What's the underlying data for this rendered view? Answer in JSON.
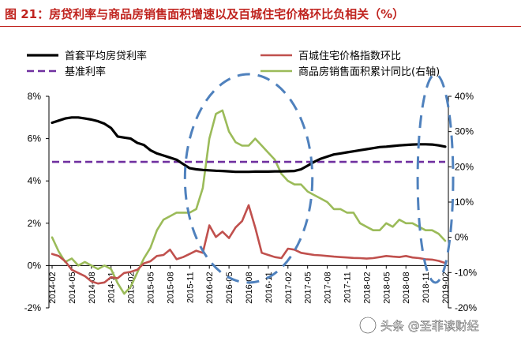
{
  "header": {
    "title": "图 21：房贷利率与商品房销售面积增速以及百城住宅价格环比负相关（%）"
  },
  "watermark": {
    "text": "头条 @圣菲读财经"
  },
  "colors": {
    "title": "#c0241f",
    "mortgage": "#000000",
    "price": "#c0504d",
    "base": "#7030a0",
    "sales": "#9bbb59",
    "ellipse": "#4f81bd"
  },
  "chart_data": {
    "type": "line",
    "title": "房贷利率与商品房销售面积增速以及百城住宅价格环比负相关（%）",
    "x": [
      "2014-02",
      "2014-03",
      "2014-04",
      "2014-05",
      "2014-06",
      "2014-07",
      "2014-08",
      "2014-09",
      "2014-10",
      "2014-11",
      "2014-12",
      "2015-01",
      "2015-02",
      "2015-03",
      "2015-04",
      "2015-05",
      "2015-06",
      "2015-07",
      "2015-08",
      "2015-09",
      "2015-10",
      "2015-11",
      "2015-12",
      "2016-01",
      "2016-02",
      "2016-03",
      "2016-04",
      "2016-05",
      "2016-06",
      "2016-07",
      "2016-08",
      "2016-09",
      "2016-10",
      "2016-11",
      "2016-12",
      "2017-01",
      "2017-02",
      "2017-03",
      "2017-04",
      "2017-05",
      "2017-06",
      "2017-07",
      "2017-08",
      "2017-09",
      "2017-10",
      "2017-11",
      "2017-12",
      "2018-01",
      "2018-02",
      "2018-03",
      "2018-04",
      "2018-05",
      "2018-06",
      "2018-07",
      "2018-08",
      "2018-09",
      "2018-10",
      "2018-11",
      "2018-12",
      "2019-01",
      "2019-02"
    ],
    "xticks": [
      "2014-02",
      "2014-05",
      "2014-08",
      "2014-11",
      "2015-02",
      "2015-05",
      "2015-08",
      "2015-11",
      "2016-02",
      "2016-05",
      "2016-08",
      "2016-11",
      "2017-02",
      "2017-05",
      "2017-08",
      "2017-11",
      "2018-02",
      "2018-05",
      "2018-08",
      "2018-11",
      "2019-02"
    ],
    "y_left": {
      "ylim": [
        -2,
        8
      ],
      "ticks": [
        "-2%",
        "0%",
        "2%",
        "4%",
        "6%",
        "8%"
      ],
      "tick_values": [
        -2,
        0,
        2,
        4,
        6,
        8
      ]
    },
    "y_right": {
      "ylim": [
        -20,
        40
      ],
      "ticks": [
        "-20%",
        "-10%",
        "0%",
        "10%",
        "20%",
        "30%",
        "40%"
      ],
      "tick_values": [
        -20,
        -10,
        0,
        10,
        20,
        30,
        40
      ]
    },
    "series": [
      {
        "name": "首套平均房贷利率",
        "axis": "left",
        "color": "#000000",
        "values": [
          6.75,
          6.85,
          6.95,
          7.0,
          7.0,
          6.95,
          6.9,
          6.82,
          6.7,
          6.5,
          6.1,
          6.05,
          6.0,
          5.8,
          5.7,
          5.45,
          5.3,
          5.2,
          5.1,
          5.0,
          4.8,
          4.6,
          4.55,
          4.52,
          4.5,
          4.48,
          4.47,
          4.45,
          4.43,
          4.43,
          4.43,
          4.44,
          4.44,
          4.44,
          4.45,
          4.45,
          4.46,
          4.47,
          4.55,
          4.72,
          4.9,
          5.05,
          5.15,
          5.25,
          5.3,
          5.35,
          5.4,
          5.45,
          5.5,
          5.55,
          5.6,
          5.62,
          5.65,
          5.68,
          5.7,
          5.72,
          5.73,
          5.73,
          5.72,
          5.68,
          5.62
        ]
      },
      {
        "name": "百城住宅价格指数环比",
        "axis": "left",
        "color": "#c0504d",
        "values": [
          0.55,
          0.45,
          0.2,
          -0.2,
          -0.35,
          -0.5,
          -0.75,
          -0.85,
          -0.8,
          -0.55,
          -0.6,
          -0.35,
          -0.3,
          -0.2,
          0.1,
          0.2,
          0.45,
          0.5,
          0.75,
          0.3,
          0.4,
          0.55,
          0.7,
          0.6,
          1.9,
          1.35,
          1.6,
          1.3,
          1.8,
          2.1,
          2.85,
          1.8,
          0.6,
          0.5,
          0.4,
          0.35,
          0.8,
          0.75,
          0.6,
          0.55,
          0.5,
          0.48,
          0.45,
          0.42,
          0.4,
          0.38,
          0.36,
          0.35,
          0.33,
          0.35,
          0.4,
          0.45,
          0.42,
          0.4,
          0.45,
          0.38,
          0.35,
          0.3,
          0.28,
          0.22,
          0.12
        ]
      },
      {
        "name": "基准利率",
        "axis": "left",
        "color": "#7030a0",
        "values": [
          4.9,
          4.9,
          4.9,
          4.9,
          4.9,
          4.9,
          4.9,
          4.9,
          4.9,
          4.9,
          4.9,
          4.9,
          4.9,
          4.9,
          4.9,
          4.9,
          4.9,
          4.9,
          4.9,
          4.9,
          4.9,
          4.9,
          4.9,
          4.9,
          4.9,
          4.9,
          4.9,
          4.9,
          4.9,
          4.9,
          4.9,
          4.9,
          4.9,
          4.9,
          4.9,
          4.9,
          4.9,
          4.9,
          4.9,
          4.9,
          4.9,
          4.9,
          4.9,
          4.9,
          4.9,
          4.9,
          4.9,
          4.9,
          4.9,
          4.9,
          4.9,
          4.9,
          4.9,
          4.9,
          4.9,
          4.9,
          4.9,
          4.9,
          4.9,
          4.9,
          4.9
        ]
      },
      {
        "name": "商品房销售面积累计同比(右轴)",
        "axis": "right",
        "color": "#9bbb59",
        "values": [
          0,
          -4,
          -7,
          -6,
          -8,
          -7,
          -8,
          -9,
          -8,
          -9,
          -13,
          -16,
          -14,
          -10,
          -6,
          -3,
          2,
          5,
          6,
          7,
          7,
          7,
          8,
          14,
          28,
          35,
          36,
          30,
          27,
          26,
          26,
          28,
          26,
          24,
          22,
          18,
          16,
          15,
          15,
          13,
          12,
          11,
          10,
          8,
          8,
          7,
          7,
          4,
          3,
          2,
          2,
          4,
          3,
          5,
          4,
          4,
          3,
          2,
          2,
          1,
          -1
        ]
      }
    ],
    "annotations": [
      {
        "shape": "dashed-ellipse",
        "from": "2015-11",
        "to": "2017-05"
      },
      {
        "shape": "dashed-ellipse",
        "from": "2018-11",
        "to": "2019-02"
      }
    ],
    "legend": {
      "position": "top",
      "columns": 2
    }
  }
}
